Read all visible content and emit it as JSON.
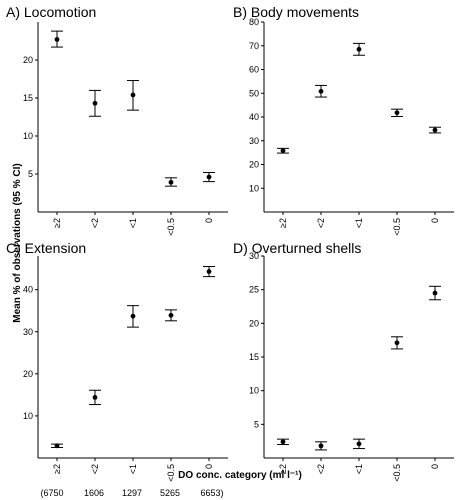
{
  "figure": {
    "ylabel": "Mean % of observations (95 % CI)",
    "xlabel": "DO conc. category (ml l⁻¹)",
    "n_labels": [
      "(6750",
      "1606",
      "1297",
      "5265",
      "6653)"
    ]
  },
  "chart_data": [
    {
      "type": "scatter",
      "title": "A) Locomotion",
      "categories": [
        "≥2",
        "<2",
        "<1",
        "<0.5",
        "0"
      ],
      "ylim": [
        0,
        25
      ],
      "yticks": [
        5,
        10,
        15,
        20
      ],
      "series": [
        {
          "values": [
            22.7,
            14.3,
            15.4,
            3.9,
            4.6
          ],
          "ci_low": [
            21.7,
            12.6,
            13.4,
            3.4,
            4.0
          ],
          "ci_high": [
            23.8,
            16.0,
            17.3,
            4.5,
            5.2
          ]
        }
      ]
    },
    {
      "type": "scatter",
      "title": "B) Body movements",
      "categories": [
        "≥2",
        "<2",
        "<1",
        "<0.5",
        "0"
      ],
      "ylim": [
        0,
        80
      ],
      "yticks": [
        10,
        20,
        30,
        40,
        50,
        60,
        70,
        80
      ],
      "series": [
        {
          "values": [
            25.8,
            50.8,
            68.5,
            41.8,
            34.5
          ],
          "ci_low": [
            24.8,
            48.4,
            66.0,
            40.2,
            33.3
          ],
          "ci_high": [
            26.8,
            53.3,
            71.0,
            43.3,
            35.7
          ]
        }
      ]
    },
    {
      "type": "scatter",
      "title": "C) Extension",
      "categories": [
        "≥2",
        "<2",
        "<1",
        "<0.5",
        "0"
      ],
      "ylim": [
        0,
        48
      ],
      "yticks": [
        10,
        20,
        30,
        40
      ],
      "series": [
        {
          "values": [
            2.9,
            14.4,
            33.7,
            33.9,
            44.3
          ],
          "ci_low": [
            2.5,
            12.7,
            31.1,
            32.6,
            43.1
          ],
          "ci_high": [
            3.3,
            16.1,
            36.2,
            35.2,
            45.5
          ]
        }
      ]
    },
    {
      "type": "scatter",
      "title": "D) Overturned shells",
      "categories": [
        "≥2",
        "<2",
        "<1",
        "<0.5",
        "0"
      ],
      "ylim": [
        0,
        30
      ],
      "yticks": [
        5,
        10,
        15,
        20,
        25,
        30
      ],
      "series": [
        {
          "values": [
            2.4,
            1.8,
            2.1,
            17.1,
            24.5
          ],
          "ci_low": [
            2.0,
            1.2,
            1.4,
            16.2,
            23.5
          ],
          "ci_high": [
            2.8,
            2.4,
            2.8,
            18.0,
            25.5
          ]
        }
      ]
    }
  ]
}
